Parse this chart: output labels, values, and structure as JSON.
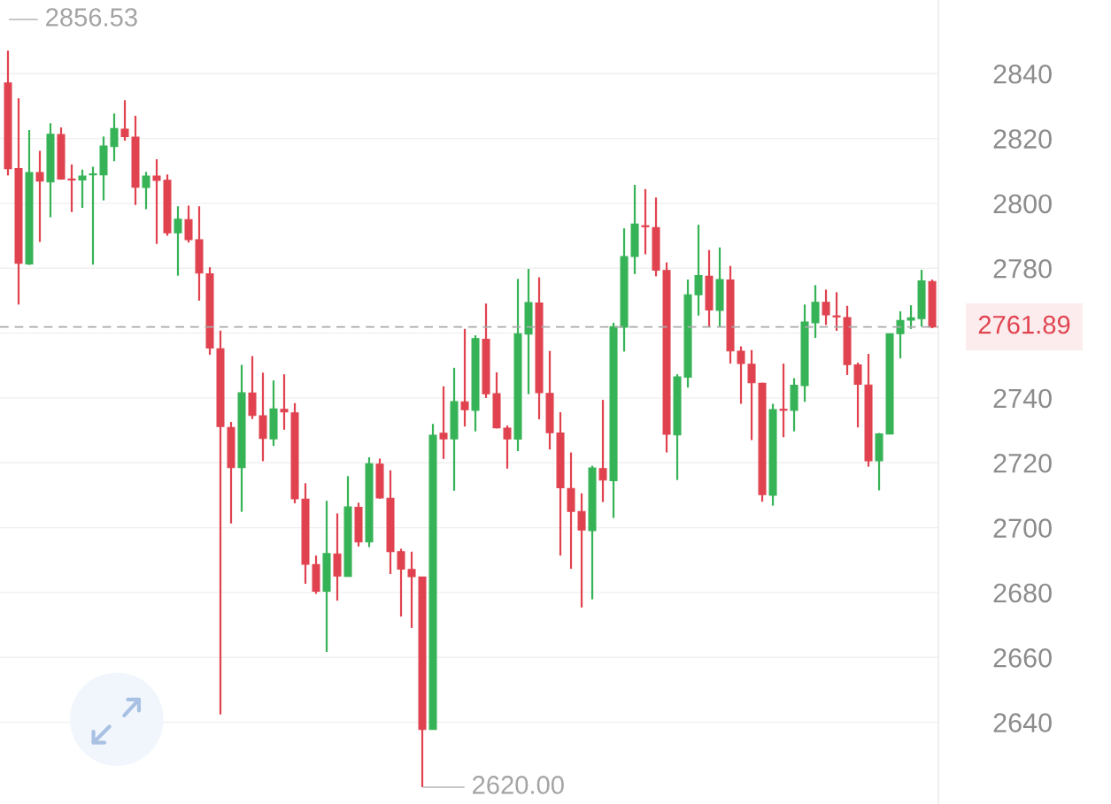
{
  "chart_data": {
    "type": "candlestick",
    "categories": [
      null,
      null,
      null,
      null,
      null,
      null,
      null,
      null,
      null,
      null,
      null,
      null,
      null,
      null,
      null,
      null,
      null,
      null,
      null,
      null,
      null,
      null,
      null,
      null,
      null,
      null,
      null,
      null,
      null,
      null,
      null,
      null,
      null,
      null,
      null,
      null,
      null,
      null,
      null,
      null,
      null,
      null,
      null,
      null,
      null,
      null,
      null,
      null,
      null,
      null,
      null,
      null,
      null,
      null,
      null,
      null,
      null,
      null,
      null,
      null,
      null,
      null,
      null,
      null,
      null,
      null,
      null,
      null,
      null,
      null,
      null,
      null,
      null,
      null,
      null,
      null,
      null,
      null,
      null,
      null,
      null,
      null,
      null,
      null,
      null,
      null,
      null,
      null
    ],
    "ohlc": [
      [
        2837.1,
        2847.1,
        2808.6,
        2810.7
      ],
      [
        2810.7,
        2832.4,
        2768.8,
        2781.5
      ],
      [
        2781.3,
        2822.6,
        2781.0,
        2809.5
      ],
      [
        2809.5,
        2816.2,
        2788.1,
        2806.9
      ],
      [
        2806.6,
        2824.7,
        2795.7,
        2821.3
      ],
      [
        2821.2,
        2823.4,
        2807.3,
        2807.5
      ],
      [
        2807.5,
        2812.0,
        2797.3,
        2807.2
      ],
      [
        2807.2,
        2810.4,
        2798.6,
        2808.4
      ],
      [
        2808.8,
        2811.3,
        2781.1,
        2809.1
      ],
      [
        2808.8,
        2820.6,
        2800.9,
        2817.7
      ],
      [
        2817.5,
        2827.7,
        2813.0,
        2823.1
      ],
      [
        2822.9,
        2831.8,
        2819.3,
        2820.6
      ],
      [
        2820.4,
        2827.0,
        2799.5,
        2805.0
      ],
      [
        2804.9,
        2809.7,
        2798.2,
        2808.4
      ],
      [
        2808.4,
        2813.6,
        2787.5,
        2807.1
      ],
      [
        2807.1,
        2808.9,
        2790.0,
        2790.9
      ],
      [
        2790.9,
        2799.1,
        2777.7,
        2795.1
      ],
      [
        2795.0,
        2799.3,
        2787.9,
        2788.8
      ],
      [
        2788.8,
        2799.1,
        2770.0,
        2778.5
      ],
      [
        2778.3,
        2780.3,
        2753.3,
        2755.4
      ],
      [
        2755.2,
        2760.8,
        2642.4,
        2731.2
      ],
      [
        2730.9,
        2732.6,
        2701.3,
        2718.5
      ],
      [
        2718.5,
        2750.2,
        2704.9,
        2741.6
      ],
      [
        2741.5,
        2752.9,
        2733.5,
        2734.6
      ],
      [
        2734.5,
        2747.8,
        2720.5,
        2727.5
      ],
      [
        2727.4,
        2745.4,
        2725.2,
        2736.6
      ],
      [
        2736.5,
        2747.3,
        2730.2,
        2735.7
      ],
      [
        2735.4,
        2738.4,
        2707.5,
        2708.9
      ],
      [
        2708.8,
        2713.7,
        2682.7,
        2688.7
      ],
      [
        2688.6,
        2691.4,
        2679.6,
        2680.4
      ],
      [
        2680.4,
        2708.3,
        2661.7,
        2692.0
      ],
      [
        2691.9,
        2704.4,
        2677.5,
        2685.1
      ],
      [
        2685.0,
        2715.9,
        2685.0,
        2706.4
      ],
      [
        2706.3,
        2707.7,
        2694.2,
        2695.6
      ],
      [
        2695.6,
        2721.7,
        2694.0,
        2719.7
      ],
      [
        2719.6,
        2721.3,
        2708.9,
        2709.2
      ],
      [
        2709.1,
        2717.7,
        2685.7,
        2692.6
      ],
      [
        2692.6,
        2693.5,
        2672.6,
        2687.2
      ],
      [
        2687.1,
        2692.6,
        2669.1,
        2684.9
      ],
      [
        2684.8,
        2684.9,
        2620.0,
        2637.8
      ],
      [
        2637.8,
        2732.0,
        2637.8,
        2728.5
      ],
      [
        2729.1,
        2743.6,
        2721.2,
        2727.4
      ],
      [
        2727.4,
        2749.3,
        2711.4,
        2738.9
      ],
      [
        2738.8,
        2761.3,
        2731.2,
        2736.4
      ],
      [
        2736.2,
        2759.3,
        2729.7,
        2758.3
      ],
      [
        2758.1,
        2769.1,
        2740.0,
        2741.3
      ],
      [
        2741.3,
        2747.9,
        2730.6,
        2730.8
      ],
      [
        2730.7,
        2731.5,
        2718.2,
        2727.4
      ],
      [
        2727.3,
        2776.7,
        2723.6,
        2759.8
      ],
      [
        2759.7,
        2779.8,
        2741.2,
        2769.4
      ],
      [
        2769.3,
        2777.2,
        2733.4,
        2741.6
      ],
      [
        2741.4,
        2754.5,
        2724.1,
        2729.3
      ],
      [
        2729.2,
        2735.6,
        2691.4,
        2712.3
      ],
      [
        2712.1,
        2723.2,
        2687.3,
        2705.0
      ],
      [
        2705.0,
        2710.6,
        2675.4,
        2699.3
      ],
      [
        2699.1,
        2719.1,
        2677.9,
        2718.4
      ],
      [
        2718.2,
        2739.4,
        2707.9,
        2714.7
      ],
      [
        2714.5,
        2763.2,
        2703.0,
        2762.0
      ],
      [
        2761.8,
        2792.3,
        2754.3,
        2783.6
      ],
      [
        2783.6,
        2805.7,
        2778.2,
        2793.6
      ],
      [
        2793.1,
        2804.4,
        2784.3,
        2792.8
      ],
      [
        2792.5,
        2801.8,
        2777.5,
        2779.4
      ],
      [
        2779.3,
        2781.8,
        2723.2,
        2728.8
      ],
      [
        2728.6,
        2747.3,
        2714.7,
        2746.5
      ],
      [
        2746.4,
        2776.5,
        2743.2,
        2771.8
      ],
      [
        2771.8,
        2793.4,
        2765.4,
        2777.7
      ],
      [
        2777.5,
        2785.6,
        2761.8,
        2767.1
      ],
      [
        2767.0,
        2786.4,
        2761.8,
        2776.5
      ],
      [
        2776.4,
        2780.7,
        2750.6,
        2754.5
      ],
      [
        2754.4,
        2755.9,
        2738.2,
        2750.6
      ],
      [
        2750.4,
        2754.8,
        2727.0,
        2744.7
      ],
      [
        2744.5,
        2744.7,
        2708.0,
        2710.2
      ],
      [
        2710.0,
        2738.2,
        2706.8,
        2736.4
      ],
      [
        2736.5,
        2750.6,
        2727.9,
        2736.2
      ],
      [
        2736.2,
        2746.1,
        2729.7,
        2743.9
      ],
      [
        2743.8,
        2768.8,
        2738.8,
        2763.4
      ],
      [
        2763.2,
        2774.8,
        2758.5,
        2769.5
      ],
      [
        2769.5,
        2773.4,
        2762.5,
        2765.6
      ],
      [
        2765.3,
        2772.6,
        2760.7,
        2765.0
      ],
      [
        2764.8,
        2768.4,
        2747.1,
        2750.3
      ],
      [
        2750.2,
        2750.9,
        2730.9,
        2744.2
      ],
      [
        2744.0,
        2753.6,
        2718.8,
        2720.6
      ],
      [
        2720.6,
        2729.2,
        2711.5,
        2728.9
      ],
      [
        2728.9,
        2759.8,
        2728.9,
        2759.8
      ],
      [
        2759.8,
        2766.7,
        2752.2,
        2763.9
      ],
      [
        2764.0,
        2768.6,
        2761.3,
        2764.7
      ],
      [
        2764.5,
        2779.5,
        2762.0,
        2776.1
      ],
      [
        2775.9,
        2776.5,
        2761.5,
        2761.89
      ]
    ],
    "colors": [
      "#e0434f",
      "#e0434f",
      "#36b356",
      "#e0434f",
      "#36b356",
      "#e0434f",
      "#e0434f",
      "#36b356",
      "#36b356",
      "#36b356",
      "#36b356",
      "#e0434f",
      "#e0434f",
      "#36b356",
      "#e0434f",
      "#e0434f",
      "#36b356",
      "#e0434f",
      "#e0434f",
      "#e0434f",
      "#e0434f",
      "#e0434f",
      "#36b356",
      "#e0434f",
      "#e0434f",
      "#36b356",
      "#e0434f",
      "#e0434f",
      "#e0434f",
      "#e0434f",
      "#36b356",
      "#e0434f",
      "#36b356",
      "#e0434f",
      "#36b356",
      "#e0434f",
      "#e0434f",
      "#e0434f",
      "#e0434f",
      "#e0434f",
      "#36b356",
      "#e0434f",
      "#36b356",
      "#e0434f",
      "#36b356",
      "#e0434f",
      "#e0434f",
      "#e0434f",
      "#36b356",
      "#36b356",
      "#e0434f",
      "#e0434f",
      "#e0434f",
      "#e0434f",
      "#e0434f",
      "#36b356",
      "#e0434f",
      "#36b356",
      "#36b356",
      "#36b356",
      "#e0434f",
      "#e0434f",
      "#e0434f",
      "#36b356",
      "#36b356",
      "#36b356",
      "#e0434f",
      "#36b356",
      "#e0434f",
      "#e0434f",
      "#e0434f",
      "#e0434f",
      "#36b356",
      "#e0434f",
      "#36b356",
      "#36b356",
      "#36b356",
      "#e0434f",
      "#e0434f",
      "#e0434f",
      "#e0434f",
      "#e0434f",
      "#36b356",
      "#36b356",
      "#36b356",
      "#36b356",
      "#36b356",
      "#e0434f"
    ],
    "ylim": [
      2614.8,
      2862.7
    ],
    "yticks": [
      2640,
      2660,
      2680,
      2700,
      2720,
      2740,
      {
        "value": 2760,
        "label": null
      },
      2780,
      2800,
      2820,
      2840
    ],
    "grid": "y",
    "ref_lines": [
      {
        "axis": "y",
        "value": 2761.89,
        "label": "2761.89",
        "color": "#aaaaaa",
        "line_style": "dashed"
      }
    ],
    "annotations": [
      "2856.53",
      "2620.00"
    ]
  }
}
